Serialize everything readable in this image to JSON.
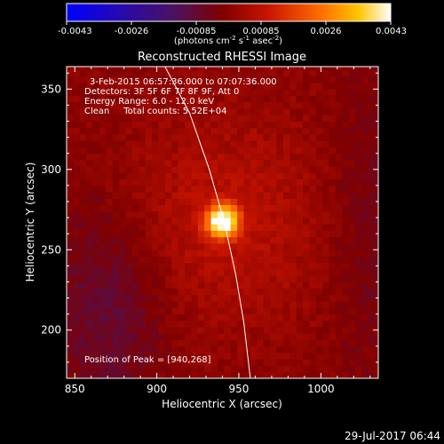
{
  "chart_data": {
    "type": "heatmap",
    "title": "Reconstructed RHESSI Image",
    "xlabel": "Heliocentric X (arcsec)",
    "ylabel": "Heliocentric Y (arcsec)",
    "xlim": [
      845,
      1035
    ],
    "ylim": [
      170,
      364
    ],
    "x_ticks": [
      850,
      900,
      950,
      1000
    ],
    "y_ticks": [
      200,
      250,
      300,
      350
    ],
    "colorbar": {
      "ticks": [
        "-0.0043",
        "-0.0026",
        "-0.00085",
        "0.00085",
        "0.0026",
        "0.0043"
      ],
      "range": [
        -0.0043,
        0.0043
      ],
      "unit_label_parts": [
        "(photons cm",
        "-2",
        " s",
        "-1",
        " asec",
        "-2",
        ")"
      ]
    },
    "annotations": [
      "3-Feb-2015 06:57:36.000 to 07:07:36.000",
      "Detectors: 3F 5F 6F 7F 8F 9F, Att 0",
      "Energy Range: 6.0 - 12.0 keV",
      "Clean     Total counts: 5.52E+04"
    ],
    "peak_label": "Position of Peak = [940,268]",
    "peak": {
      "x": 940,
      "y": 268,
      "value": 0.0043
    },
    "limb_points": [
      [
        905,
        364
      ],
      [
        920,
        335
      ],
      [
        932,
        300
      ],
      [
        941,
        268
      ],
      [
        948,
        235
      ],
      [
        953,
        205
      ],
      [
        957,
        170
      ]
    ],
    "footer_timestamp": "29-Jul-2017 06:44",
    "colors": {
      "background": "#000000",
      "axes": "#ffffff",
      "limb": "#ffffff"
    }
  }
}
